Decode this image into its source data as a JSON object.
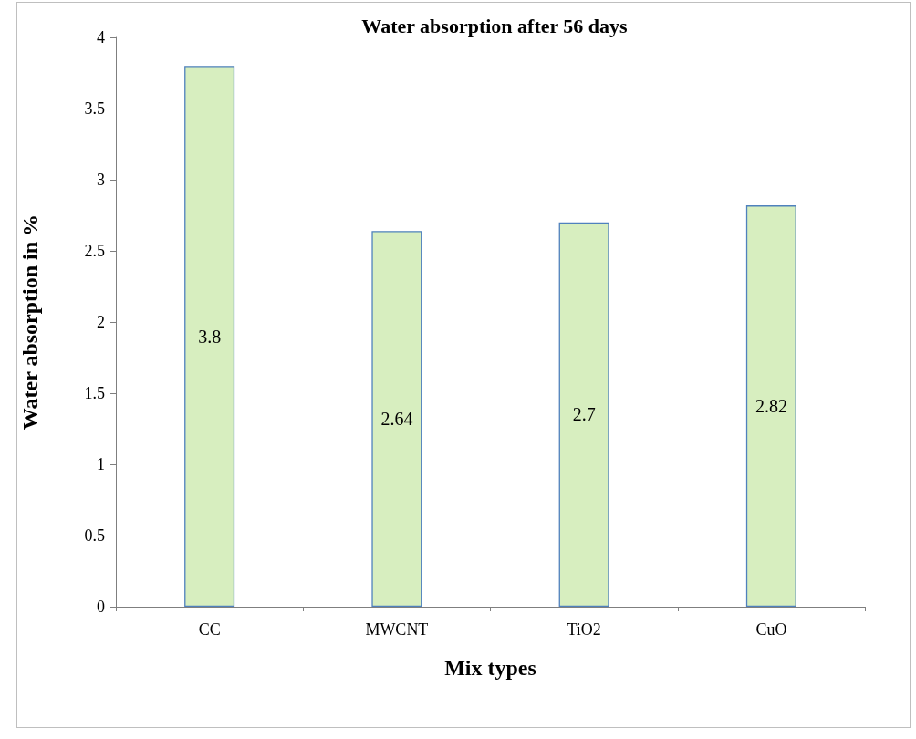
{
  "chart_data": {
    "type": "bar",
    "title": "Water absorption after 56 days",
    "xlabel": "Mix types",
    "ylabel": "Water absorption in %",
    "categories": [
      "CC",
      "MWCNT",
      "TiO2",
      "CuO"
    ],
    "values": [
      3.8,
      2.64,
      2.7,
      2.82
    ],
    "color": "#d7eebf",
    "ylim": [
      0,
      4
    ],
    "yticks": [
      0,
      0.5,
      1,
      1.5,
      2,
      2.5,
      3,
      3.5,
      4
    ],
    "grid": false,
    "data_labels": true
  }
}
